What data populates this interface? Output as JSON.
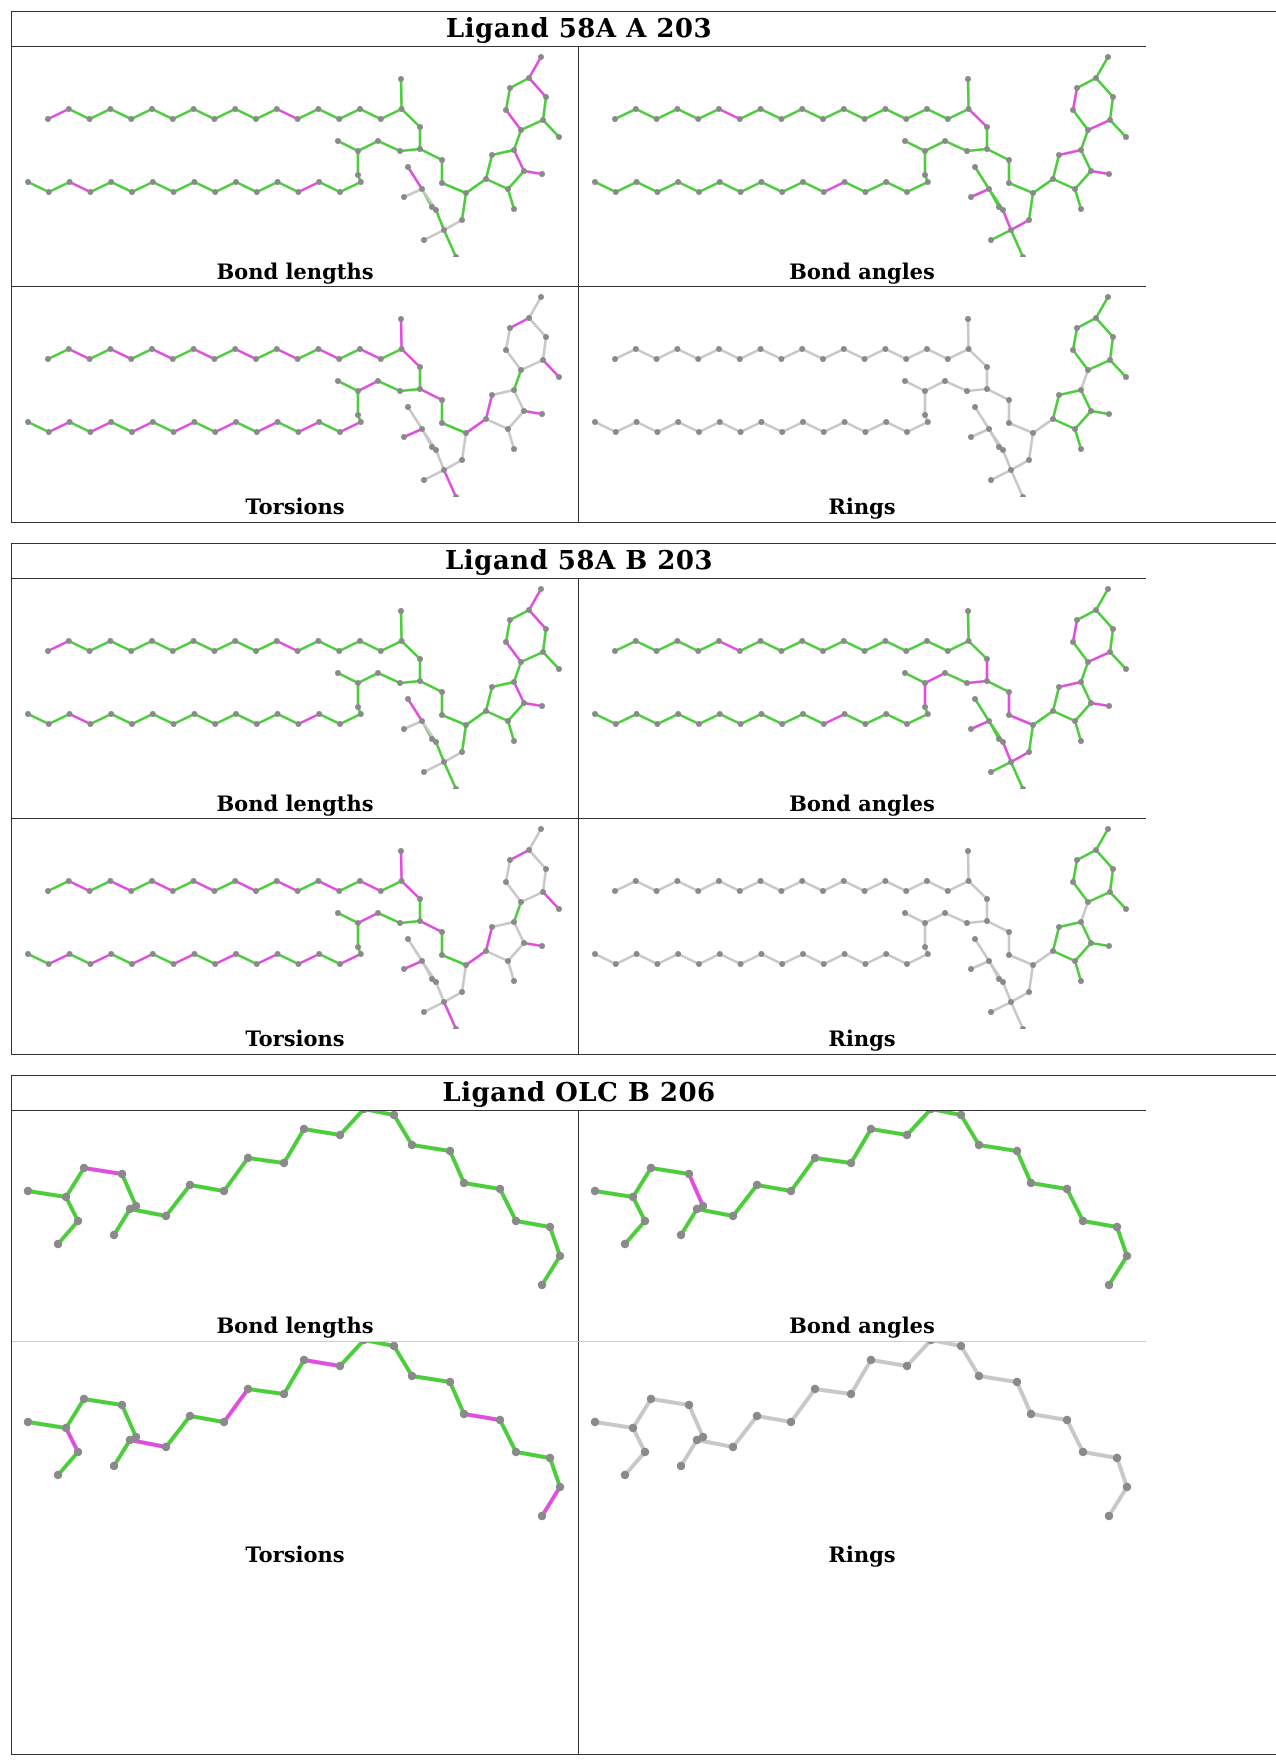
{
  "blocks": [
    {
      "title": "Ligand 58A A 203",
      "molecule": "58A",
      "panels": [
        {
          "caption": "Bond lengths",
          "scheme": "lengths"
        },
        {
          "caption": "Bond angles",
          "scheme": "angles"
        },
        {
          "caption": "Torsions",
          "scheme": "torsions"
        },
        {
          "caption": "Rings",
          "scheme": "rings"
        }
      ]
    },
    {
      "title": "Ligand 58A B 203",
      "molecule": "58A",
      "panels": [
        {
          "caption": "Bond lengths",
          "scheme": "lengths"
        },
        {
          "caption": "Bond angles",
          "scheme": "angles2"
        },
        {
          "caption": "Torsions",
          "scheme": "torsions"
        },
        {
          "caption": "Rings",
          "scheme": "rings"
        }
      ]
    },
    {
      "title": "Ligand OLC B 206",
      "molecule": "OLC",
      "panels": [
        {
          "caption": "Bond lengths",
          "scheme": "lengths"
        },
        {
          "caption": "Bond angles",
          "scheme": "angles"
        },
        {
          "caption": "Torsions",
          "scheme": "torsions"
        },
        {
          "caption": "Rings",
          "scheme": "rings"
        }
      ]
    }
  ],
  "colors": {
    "green": "#4ccd3c",
    "magenta": "#e04ee0",
    "grey": "#c8c8c8",
    "atom": "#8a8a8a"
  }
}
